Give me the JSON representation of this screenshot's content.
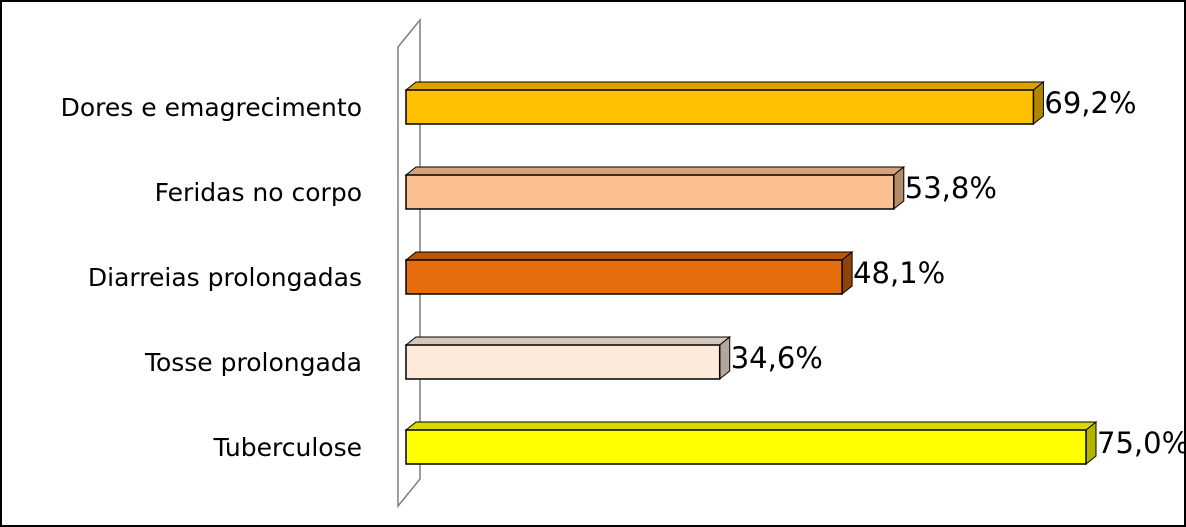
{
  "chart_data": {
    "type": "bar",
    "orientation": "horizontal",
    "categories": [
      "Dores e emagrecimento",
      "Feridas no corpo",
      "Diarreias prolongadas",
      "Tosse prolongada",
      "Tuberculose"
    ],
    "values": [
      69.2,
      53.8,
      48.1,
      34.6,
      75.0
    ],
    "value_labels": [
      "69,2%",
      "53,8%",
      "48,1%",
      "34,6%",
      "75,0%"
    ],
    "unit": "%",
    "xlim": [
      0,
      75
    ],
    "colors": [
      "#FFC000",
      "#FAC090",
      "#E46C0A",
      "#FDEADA",
      "#FFFF00"
    ],
    "side_colors": [
      "#B08600",
      "#B38A6A",
      "#8F4306",
      "#B3A69C",
      "#B3B300"
    ],
    "top_colors": [
      "#D9A300",
      "#D4A37A",
      "#B55608",
      "#D6C7BB",
      "#D9D900"
    ],
    "grid": false,
    "legend": "none",
    "title": "",
    "xlabel": "",
    "ylabel": "",
    "style": "3d"
  }
}
